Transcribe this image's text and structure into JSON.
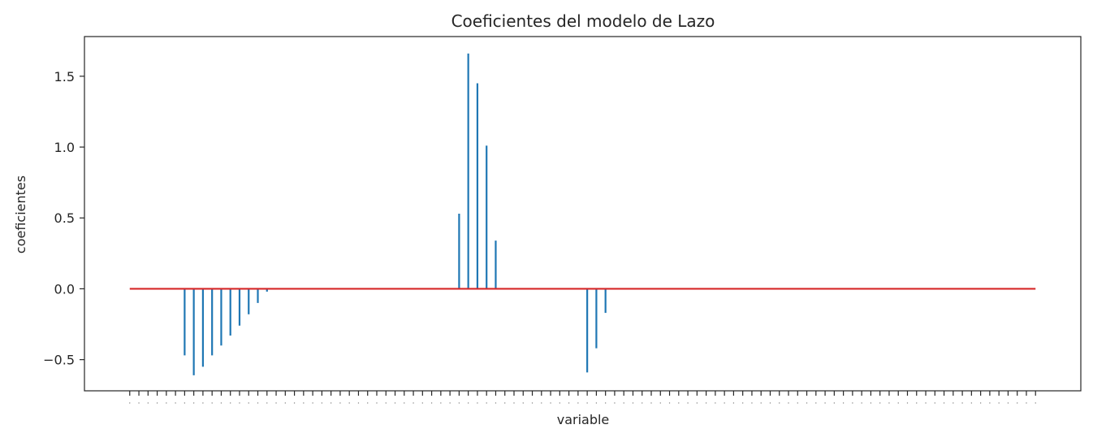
{
  "chart_data": {
    "type": "stem",
    "title": "Coeficientes del modelo de Lazo",
    "xlabel": "variable",
    "ylabel": "coeficientes",
    "ylim": [
      -0.72,
      1.78
    ],
    "yticks": [
      -0.5,
      0.0,
      0.5,
      1.0,
      1.5
    ],
    "ytick_labels": [
      "−0.5",
      "0.0",
      "0.5",
      "1.0",
      "1.5"
    ],
    "grid": false,
    "baseline": 0,
    "colors": {
      "stem": "#1f77b4",
      "baseline": "#d62728",
      "axes": "#262626"
    },
    "x": [
      0,
      1,
      2,
      3,
      4,
      5,
      6,
      7,
      8,
      9,
      10,
      11,
      12,
      13,
      14,
      15,
      16,
      17,
      18,
      19,
      20,
      21,
      22,
      23,
      24,
      25,
      26,
      27,
      28,
      29,
      30,
      31,
      32,
      33,
      34,
      35,
      36,
      37,
      38,
      39,
      40,
      41,
      42,
      43,
      44,
      45,
      46,
      47,
      48,
      49,
      50,
      51,
      52,
      53,
      54,
      55,
      56,
      57,
      58,
      59,
      60,
      61,
      62,
      63,
      64,
      65,
      66,
      67,
      68,
      69,
      70,
      71,
      72,
      73,
      74,
      75,
      76,
      77,
      78,
      79,
      80,
      81,
      82,
      83,
      84,
      85,
      86,
      87,
      88,
      89,
      90,
      91,
      92,
      93,
      94,
      95,
      96,
      97,
      98,
      99
    ],
    "values": [
      0,
      0,
      0,
      0,
      0,
      0,
      -0.47,
      -0.61,
      -0.55,
      -0.47,
      -0.4,
      -0.33,
      -0.26,
      -0.18,
      -0.1,
      -0.02,
      0,
      0,
      0,
      0,
      0,
      0,
      0,
      0,
      0,
      0,
      0,
      0,
      0,
      0,
      0,
      0,
      0,
      0,
      0,
      0,
      0.53,
      1.66,
      1.45,
      1.01,
      0.34,
      0,
      0,
      0,
      0,
      0,
      0,
      0,
      0,
      0,
      -0.59,
      -0.42,
      -0.17,
      0,
      0,
      0,
      0,
      0,
      0,
      0,
      0,
      0,
      0,
      0,
      0,
      0,
      0,
      0,
      0,
      0,
      0,
      0,
      0,
      0,
      0,
      0,
      0,
      0,
      0,
      0,
      0,
      0,
      0,
      0,
      0,
      0,
      0,
      0,
      0,
      0,
      0,
      0,
      0,
      0,
      0,
      0,
      0,
      0,
      0,
      0
    ]
  }
}
